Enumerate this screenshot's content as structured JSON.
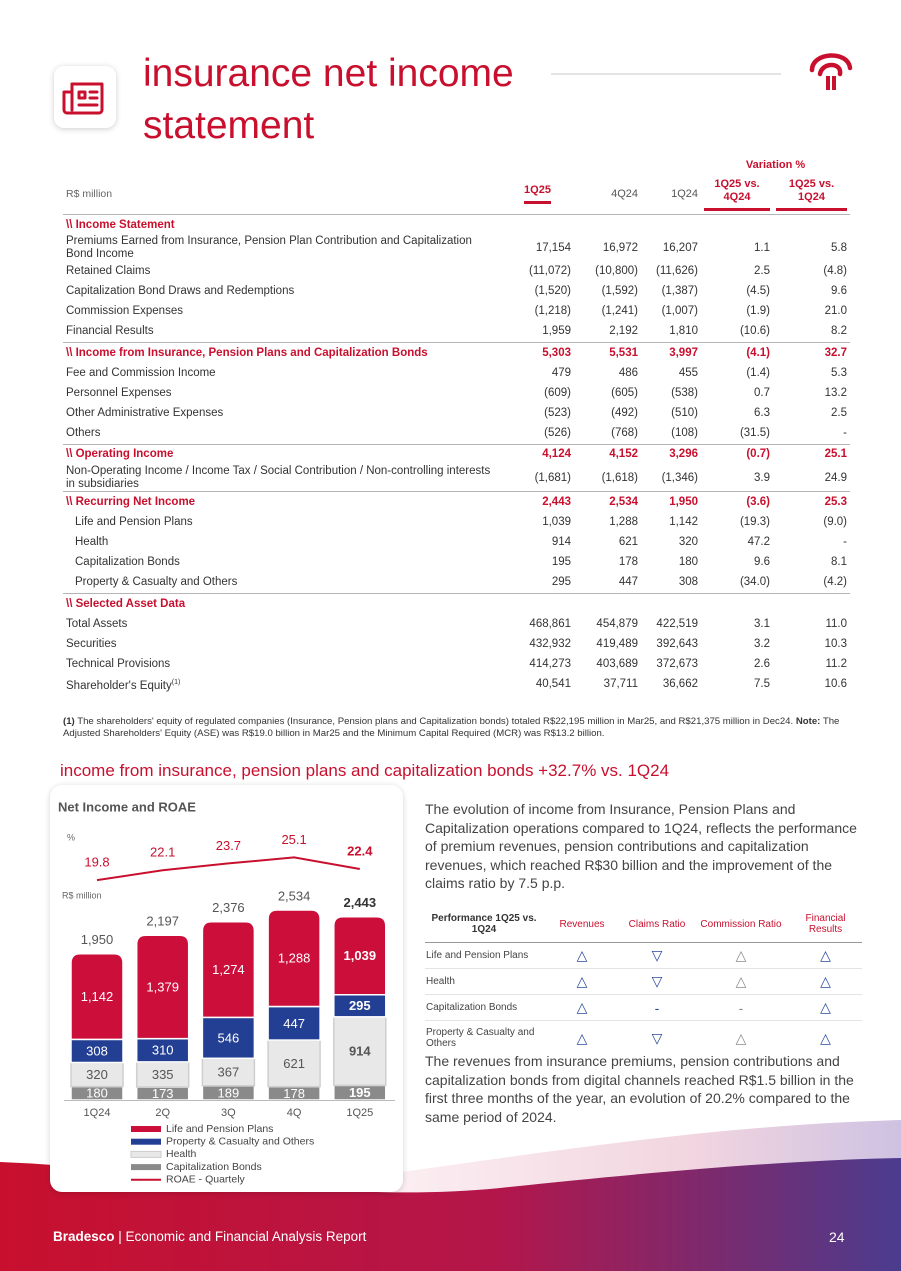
{
  "header": {
    "title": "insurance net income statement"
  },
  "table": {
    "unit": "R$ million",
    "group_label": "Variation %",
    "columns": [
      "1Q25",
      "4Q24",
      "1Q24",
      "1Q25 vs. 4Q24",
      "1Q25 vs. 1Q24"
    ],
    "rows": [
      {
        "label": "\\\\ Income Statement"
      },
      {
        "label": "Premiums Earned from Insurance, Pension Plan Contribution and Capitalization Bond Income",
        "values": [
          "17,154",
          "16,972",
          "16,207",
          "1.1",
          "5.8"
        ]
      },
      {
        "label": "Retained Claims",
        "values": [
          "(11,072)",
          "(10,800)",
          "(11,626)",
          "2.5",
          "(4.8)"
        ]
      },
      {
        "label": "Capitalization Bond Draws and Redemptions",
        "values": [
          "(1,520)",
          "(1,592)",
          "(1,387)",
          "(4.5)",
          "9.6"
        ]
      },
      {
        "label": "Commission Expenses",
        "values": [
          "(1,218)",
          "(1,241)",
          "(1,007)",
          "(1.9)",
          "21.0"
        ]
      },
      {
        "label": "Financial Results",
        "values": [
          "1,959",
          "2,192",
          "1,810",
          "(10.6)",
          "8.2"
        ]
      },
      {
        "label": "\\\\ Income from Insurance, Pension Plans and Capitalization Bonds",
        "values": [
          "5,303",
          "5,531",
          "3,997",
          "(4.1)",
          "32.7"
        ]
      },
      {
        "label": "Fee and Commission Income",
        "values": [
          "479",
          "486",
          "455",
          "(1.4)",
          "5.3"
        ]
      },
      {
        "label": "Personnel Expenses",
        "values": [
          "(609)",
          "(605)",
          "(538)",
          "0.7",
          "13.2"
        ]
      },
      {
        "label": "Other Administrative Expenses",
        "values": [
          "(523)",
          "(492)",
          "(510)",
          "6.3",
          "2.5"
        ]
      },
      {
        "label": "Others",
        "values": [
          "(526)",
          "(768)",
          "(108)",
          "(31.5)",
          "-"
        ]
      },
      {
        "label": "\\\\ Operating Income",
        "values": [
          "4,124",
          "4,152",
          "3,296",
          "(0.7)",
          "25.1"
        ]
      },
      {
        "label": "Non-Operating Income / Income Tax / Social Contribution / Non-controlling interests in subsidiaries",
        "values": [
          "(1,681)",
          "(1,618)",
          "(1,346)",
          "3.9",
          "24.9"
        ]
      },
      {
        "label": "\\\\ Recurring Net Income",
        "values": [
          "2,443",
          "2,534",
          "1,950",
          "(3.6)",
          "25.3"
        ],
        "breakdown": [
          {
            "label": "Life and Pension Plans",
            "values": [
              "1,039",
              "1,288",
              "1,142",
              "(19.3)",
              "(9.0)"
            ]
          },
          {
            "label": "Health",
            "values": [
              "914",
              "621",
              "320",
              "47.2",
              "-"
            ]
          },
          {
            "label": "Capitalization Bonds",
            "values": [
              "195",
              "178",
              "180",
              "9.6",
              "8.1"
            ]
          },
          {
            "label": "Property & Casualty and Others",
            "values": [
              "295",
              "447",
              "308",
              "(34.0)",
              "(4.2)"
            ]
          }
        ]
      },
      {
        "label": "\\\\ Selected Asset Data"
      },
      {
        "label": "Total Assets",
        "values": [
          "468,861",
          "454,879",
          "422,519",
          "3.1",
          "11.0"
        ]
      },
      {
        "label": "Securities",
        "values": [
          "432,932",
          "419,489",
          "392,643",
          "3.2",
          "10.3"
        ]
      },
      {
        "label": "Technical Provisions",
        "values": [
          "414,273",
          "403,689",
          "372,673",
          "2.6",
          "11.2"
        ]
      },
      {
        "label": "Shareholder's Equity",
        "note_ref": "(1)",
        "values": [
          "40,541",
          "37,711",
          "36,662",
          "7.5",
          "10.6"
        ]
      }
    ]
  },
  "footnote": {
    "ref": "(1)",
    "text": "The shareholders' equity of regulated companies (Insurance, Pension plans and Capitalization bonds) totaled R$22,195 million in Mar25, and R$21,375 million in Dec24.",
    "note_label": "Note:",
    "note_text": "The Adjusted Shareholders' Equity (ASE) was R$19.0 billion in Mar25 and the Minimum Capital Required (MCR) was R$13.2 billion."
  },
  "section_title": "income from insurance, pension plans and capitalization bonds +32.7% vs. 1Q24",
  "chart": {
    "type": "bar",
    "title": "Net Income and ROAE",
    "y_label": "R$ million",
    "y2_label": "%",
    "categories": [
      "1Q24",
      "2Q",
      "3Q",
      "4Q",
      "1Q25"
    ],
    "ylim": [
      0,
      2600
    ],
    "y2lim": [
      14,
      28
    ],
    "series": [
      {
        "name": "Capitalization Bonds",
        "color": "#8a8a8a",
        "values": [
          180,
          173,
          189,
          178,
          195
        ]
      },
      {
        "name": "Health",
        "color": "#e8e8e8",
        "values": [
          320,
          335,
          367,
          621,
          914
        ]
      },
      {
        "name": "Property & Casualty and Others",
        "color": "#233f93",
        "values": [
          308,
          310,
          546,
          447,
          295
        ]
      },
      {
        "name": "Life and Pension Plans",
        "color": "#cc0e3a",
        "values": [
          1142,
          1379,
          1274,
          1288,
          1039
        ],
        "value_labels": [
          "1,142",
          "1,379",
          "1,274",
          "1,288",
          "1,039"
        ]
      },
      {
        "name": "ROAE - Quartely",
        "type": "line",
        "axis": "y2",
        "color": "#c8102e",
        "values": [
          19.8,
          22.1,
          23.7,
          25.1,
          22.4
        ]
      }
    ],
    "totals": {
      "values": [
        1950,
        2197,
        2376,
        2534,
        2443
      ],
      "value_labels": [
        "1,950",
        "2,197",
        "2,376",
        "2,534",
        "2,443"
      ]
    }
  },
  "commentary": [
    "The evolution of income from Insurance, Pension Plans and Capitalization operations compared to 1Q24, reflects the performance of premium revenues, pension contributions and capitalization revenues, which reached R$30 billion and the improvement of the claims ratio by 7.5 p.p.",
    "The revenues from insurance premiums, pension contributions and capitalization bonds from digital channels reached R$1.5 billion in the first three months of the year, an evolution of 20.2% compared to the same period of 2024."
  ],
  "performance": {
    "header": [
      "Performance 1Q25 vs. 1Q24",
      "Revenues",
      "Claims Ratio",
      "Commission Ratio",
      "Financial Results"
    ],
    "rows": [
      {
        "label": "Life and Pension Plans",
        "values": [
          "△",
          "▽",
          "△",
          "△"
        ]
      },
      {
        "label": "Health",
        "values": [
          "△",
          "▽",
          "△",
          "△"
        ]
      },
      {
        "label": "Capitalization Bonds",
        "values": [
          "△",
          "-",
          "-",
          "△"
        ]
      },
      {
        "label": "Property & Casualty and Others",
        "values": [
          "△",
          "▽",
          "△",
          "△"
        ]
      }
    ]
  },
  "footer": {
    "brand": "Bradesco",
    "text": "| Economic and Financial Analysis Report",
    "page": "24"
  }
}
